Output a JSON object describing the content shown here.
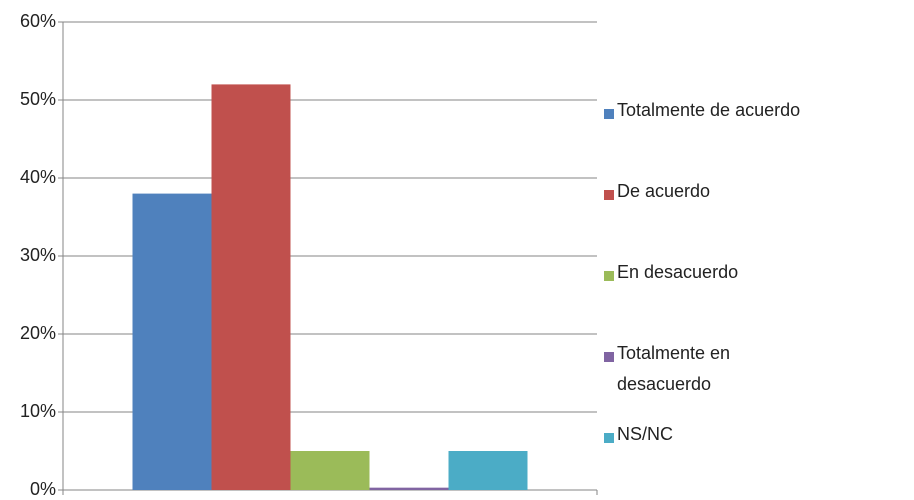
{
  "chart_data": {
    "type": "bar",
    "series": [
      {
        "name": "Totalmente de acuerdo",
        "color": "#4f81bd",
        "values": [
          38
        ]
      },
      {
        "name": "De acuerdo",
        "color": "#c0504d",
        "values": [
          52
        ]
      },
      {
        "name": "En desacuerdo",
        "color": "#9bbb59",
        "values": [
          5
        ]
      },
      {
        "name": "Totalmente en desacuerdo",
        "color": "#8064a2",
        "values": [
          0.3
        ]
      },
      {
        "name": "NS/NC",
        "color": "#4bacc6",
        "values": [
          5
        ]
      }
    ],
    "ylim": [
      0,
      60
    ],
    "yticks": [
      {
        "value": 0,
        "label": "0%"
      },
      {
        "value": 10,
        "label": "10%"
      },
      {
        "value": 20,
        "label": "20%"
      },
      {
        "value": 30,
        "label": "30%"
      },
      {
        "value": 40,
        "label": "40%"
      },
      {
        "value": 50,
        "label": "50%"
      },
      {
        "value": 60,
        "label": "60%"
      }
    ],
    "grid": true
  }
}
